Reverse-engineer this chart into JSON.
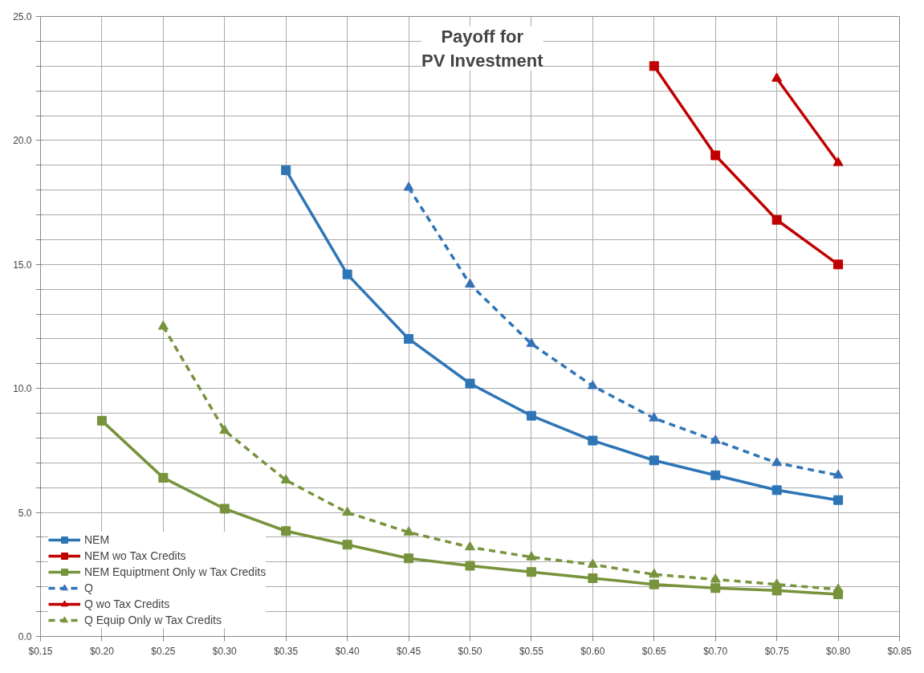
{
  "chart_data": {
    "type": "line",
    "title": "Payoff for\nPV Investment",
    "xlim": [
      0.15,
      0.85
    ],
    "xticks": [
      {
        "value": 0.15,
        "label": "$0.15"
      },
      {
        "value": 0.2,
        "label": "$0.20"
      },
      {
        "value": 0.25,
        "label": "$0.25"
      },
      {
        "value": 0.3,
        "label": "$0.30"
      },
      {
        "value": 0.35,
        "label": "$0.35"
      },
      {
        "value": 0.4,
        "label": "$0.40"
      },
      {
        "value": 0.45,
        "label": "$0.45"
      },
      {
        "value": 0.5,
        "label": "$0.50"
      },
      {
        "value": 0.55,
        "label": "$0.55"
      },
      {
        "value": 0.6,
        "label": "$0.60"
      },
      {
        "value": 0.65,
        "label": "$0.65"
      },
      {
        "value": 0.7,
        "label": "$0.70"
      },
      {
        "value": 0.75,
        "label": "$0.75"
      },
      {
        "value": 0.8,
        "label": "$0.80"
      },
      {
        "value": 0.85,
        "label": "$0.85"
      }
    ],
    "ylim": [
      0,
      25
    ],
    "yticks": [
      {
        "value": 0,
        "label": "0.0"
      },
      {
        "value": 1,
        "label": null
      },
      {
        "value": 2,
        "label": null
      },
      {
        "value": 3,
        "label": null
      },
      {
        "value": 4,
        "label": null
      },
      {
        "value": 5,
        "label": "5.0"
      },
      {
        "value": 6,
        "label": null
      },
      {
        "value": 7,
        "label": null
      },
      {
        "value": 8,
        "label": null
      },
      {
        "value": 9,
        "label": null
      },
      {
        "value": 10,
        "label": "10.0"
      },
      {
        "value": 11,
        "label": null
      },
      {
        "value": 12,
        "label": null
      },
      {
        "value": 13,
        "label": null
      },
      {
        "value": 14,
        "label": null
      },
      {
        "value": 15,
        "label": "15.0"
      },
      {
        "value": 16,
        "label": null
      },
      {
        "value": 17,
        "label": null
      },
      {
        "value": 18,
        "label": null
      },
      {
        "value": 19,
        "label": null
      },
      {
        "value": 20,
        "label": "20.0"
      },
      {
        "value": 21,
        "label": null
      },
      {
        "value": 22,
        "label": null
      },
      {
        "value": 23,
        "label": null
      },
      {
        "value": 24,
        "label": null
      },
      {
        "value": 25,
        "label": "25.0"
      }
    ],
    "grid": true,
    "legend": "bottom left",
    "series": [
      {
        "name": "NEM",
        "color": "#2e75b6",
        "marker": "square",
        "line_style": "solid",
        "x": [
          0.35,
          0.4,
          0.45,
          0.5,
          0.55,
          0.6,
          0.65,
          0.7,
          0.75,
          0.8
        ],
        "values": [
          18.8,
          14.6,
          12.0,
          10.2,
          8.9,
          7.9,
          7.1,
          6.5,
          5.9,
          5.5
        ]
      },
      {
        "name": "NEM wo Tax Credits",
        "color": "#c00000",
        "marker": "square",
        "line_style": "solid",
        "x": [
          0.65,
          0.7,
          0.75,
          0.8
        ],
        "values": [
          23.0,
          19.4,
          16.8,
          15.0
        ]
      },
      {
        "name": "NEM Equiptment Only w Tax Credits",
        "color": "#77933c",
        "marker": "square",
        "line_style": "solid",
        "x": [
          0.2,
          0.25,
          0.3,
          0.35,
          0.4,
          0.45,
          0.5,
          0.55,
          0.6,
          0.65,
          0.7,
          0.75,
          0.8
        ],
        "values": [
          8.7,
          6.4,
          5.15,
          4.25,
          3.7,
          3.15,
          2.85,
          2.6,
          2.35,
          2.1,
          1.95,
          1.85,
          1.7
        ]
      },
      {
        "name": "Q",
        "color": "#2e75b6",
        "marker": "triangle",
        "line_style": "dashed",
        "x": [
          0.45,
          0.5,
          0.55,
          0.6,
          0.65,
          0.7,
          0.75,
          0.8
        ],
        "values": [
          18.1,
          14.2,
          11.8,
          10.1,
          8.8,
          7.9,
          7.0,
          6.5
        ]
      },
      {
        "name": "Q wo Tax Credits",
        "color": "#c00000",
        "marker": "triangle",
        "line_style": "solid",
        "x": [
          0.75,
          0.8
        ],
        "values": [
          22.5,
          19.1
        ]
      },
      {
        "name": "Q Equip Only w Tax Credits",
        "color": "#77933c",
        "marker": "triangle",
        "line_style": "dashed",
        "x": [
          0.25,
          0.3,
          0.35,
          0.4,
          0.45,
          0.5,
          0.55,
          0.6,
          0.65,
          0.7,
          0.75,
          0.8
        ],
        "values": [
          12.5,
          8.3,
          6.3,
          5.0,
          4.2,
          3.6,
          3.2,
          2.9,
          2.5,
          2.3,
          2.1,
          1.9
        ]
      }
    ]
  }
}
